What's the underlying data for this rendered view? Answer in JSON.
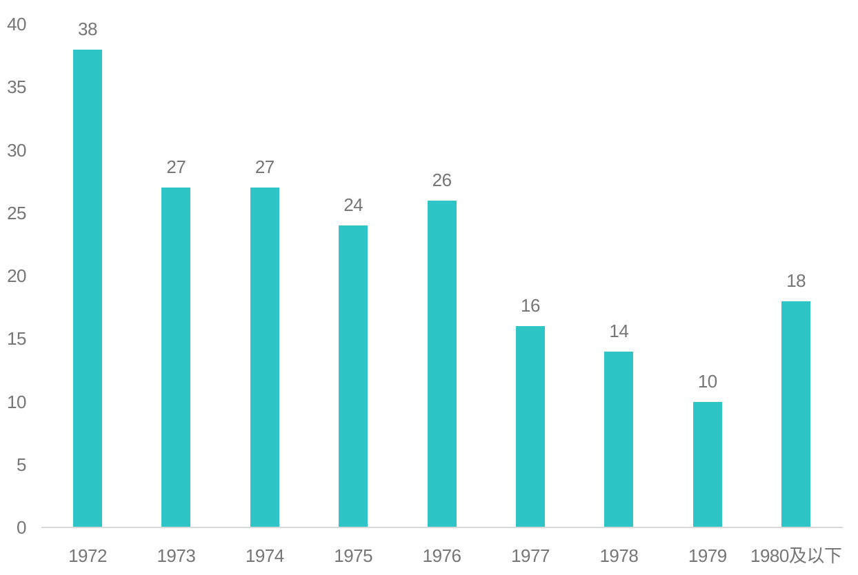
{
  "chart_data": {
    "type": "bar",
    "categories": [
      "1972",
      "1973",
      "1974",
      "1975",
      "1976",
      "1977",
      "1978",
      "1979",
      "1980及以下"
    ],
    "values": [
      38,
      27,
      27,
      24,
      26,
      16,
      14,
      10,
      18
    ],
    "value_labels": [
      "38",
      "27",
      "27",
      "24",
      "26",
      "16",
      "14",
      "10",
      "18"
    ],
    "yticks": [
      "0",
      "5",
      "10",
      "15",
      "20",
      "25",
      "30",
      "35",
      "40"
    ],
    "ytick_values": [
      0,
      5,
      10,
      15,
      20,
      25,
      30,
      35,
      40
    ],
    "ylim": [
      0,
      40
    ],
    "xlabel": "",
    "ylabel": "",
    "grid": false,
    "legend_position": "none",
    "bar_color": "#2FC5C7",
    "label_color": "#767676",
    "axis_line_color": "#D9D9D9",
    "background_color": "#FFFFFF"
  }
}
